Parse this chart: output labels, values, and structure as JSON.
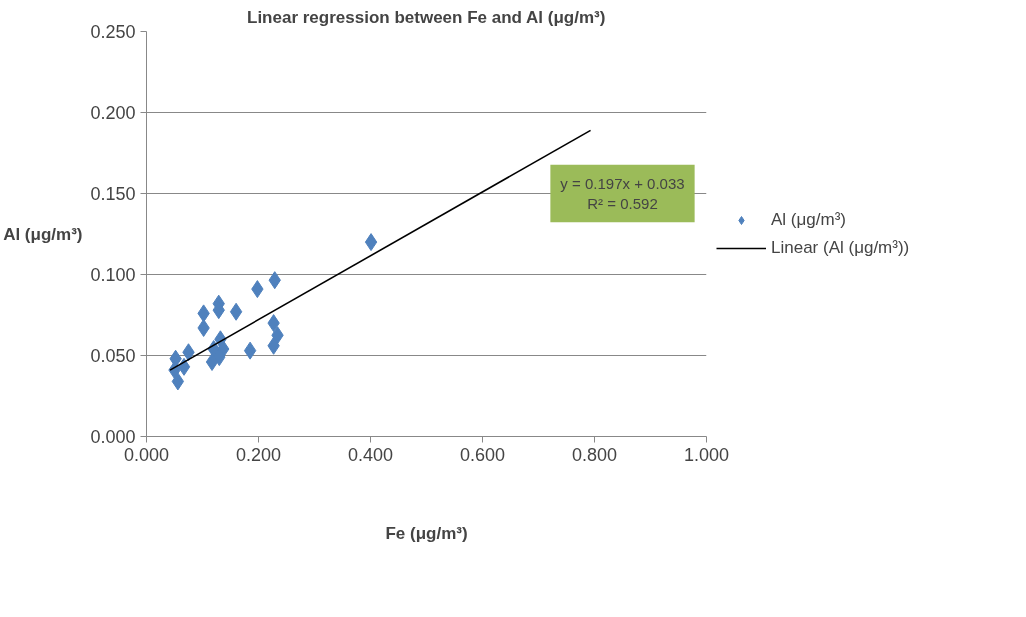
{
  "chart_data": {
    "type": "scatter",
    "title": "Linear regression between Fe and Al (μg/m³)",
    "xlabel": "Fe (μg/m³)",
    "ylabel": "Al (μg/m³)",
    "xlim": [
      0,
      1
    ],
    "ylim": [
      0,
      0.25
    ],
    "xticks": [
      {
        "value": 0,
        "label": "0.000"
      },
      {
        "value": 0.2,
        "label": "0.200"
      },
      {
        "value": 0.4,
        "label": "0.400"
      },
      {
        "value": 0.6,
        "label": "0.600"
      },
      {
        "value": 0.8,
        "label": "0.800"
      },
      {
        "value": 1,
        "label": "1.000"
      }
    ],
    "yticks": [
      {
        "value": 0,
        "label": "0.000"
      },
      {
        "value": 0.05,
        "label": "0.050"
      },
      {
        "value": 0.1,
        "label": "0.100"
      },
      {
        "value": 0.15,
        "label": "0.150"
      },
      {
        "value": 0.2,
        "label": "0.200"
      },
      {
        "value": 0.25,
        "label": "0.250"
      }
    ],
    "grid": "y",
    "legend": "right",
    "annotations": [
      "y = 0.197x + 0.033\nR² = 0.592"
    ],
    "series": [
      {
        "name": "Al (μg/m³)",
        "marker": "diamond",
        "color": "#4f81bd",
        "x": [
          0.401,
          0.229,
          0.198,
          0.129,
          0.129,
          0.16,
          0.102,
          0.102,
          0.227,
          0.234,
          0.227,
          0.185,
          0.132,
          0.137,
          0.12,
          0.13,
          0.117,
          0.075,
          0.052,
          0.067,
          0.05,
          0.056
        ],
        "values": [
          0.12,
          0.0965,
          0.091,
          0.082,
          0.078,
          0.077,
          0.076,
          0.067,
          0.07,
          0.0625,
          0.056,
          0.053,
          0.06,
          0.054,
          0.054,
          0.049,
          0.046,
          0.052,
          0.048,
          0.043,
          0.041,
          0.034
        ]
      },
      {
        "name": "Linear (Al (μg/m³))",
        "type": "line",
        "color": "#000000",
        "x": [
          0.042,
          0.793
        ],
        "values": [
          0.041,
          0.189
        ]
      }
    ]
  }
}
